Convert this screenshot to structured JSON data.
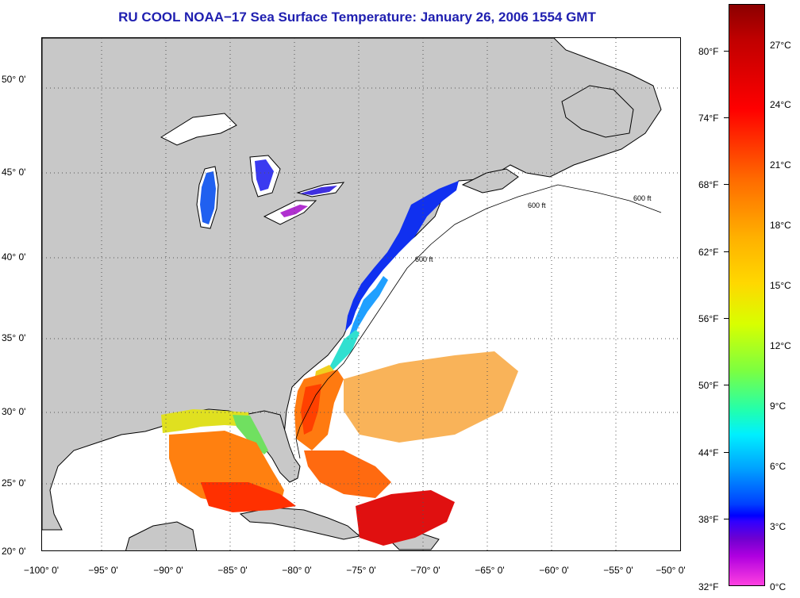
{
  "title": "RU COOL  NOAA−17  Sea Surface Temperature:  January 26, 2006 1554 GMT",
  "map": {
    "latitude_labels": [
      "50° 0'",
      "45° 0'",
      "40° 0'",
      "35° 0'",
      "30° 0'",
      "25° 0'",
      "20° 0'"
    ],
    "longitude_labels": [
      "−100° 0'",
      "−95° 0'",
      "−90° 0'",
      "−85° 0'",
      "−80° 0'",
      "−75° 0'",
      "−70° 0'",
      "−65° 0'",
      "−60° 0'",
      "−55° 0'",
      "−50° 0'"
    ],
    "contour_label": "600 ft",
    "colors": {
      "land": "#c8c8c8",
      "ocean_no_data": "#ffffff",
      "grid": "#555555"
    }
  },
  "colorbar": {
    "fahrenheit_labels": [
      "80°F",
      "74°F",
      "68°F",
      "62°F",
      "56°F",
      "50°F",
      "44°F",
      "38°F",
      "32°F"
    ],
    "celsius_labels": [
      "27°C",
      "24°C",
      "21°C",
      "18°C",
      "15°C",
      "12°C",
      "9°C",
      "6°C",
      "3°C",
      "0°C"
    ]
  }
}
